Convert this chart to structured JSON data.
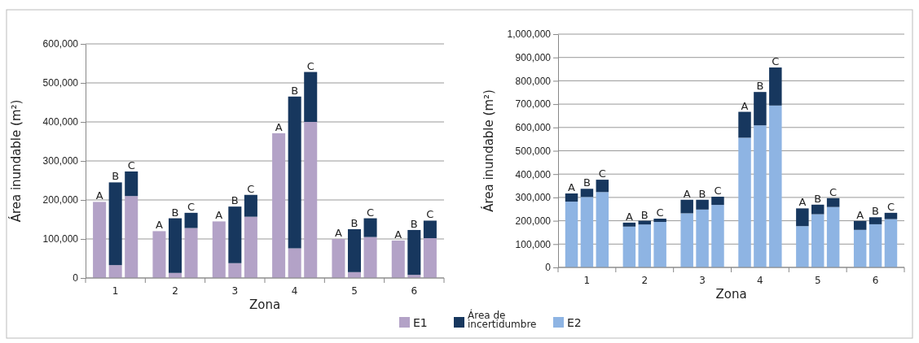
{
  "chart_data": [
    {
      "type": "bar",
      "stacked": true,
      "xlabel": "Zona",
      "ylabel": "Área inundable (m²)",
      "categories": [
        "A",
        "B",
        "C",
        "A",
        "B",
        "C",
        "A",
        "B",
        "C",
        "A",
        "B",
        "C",
        "A",
        "B",
        "C",
        "A",
        "B",
        "C"
      ],
      "annotations": [
        "1",
        "2",
        "3",
        "4",
        "5",
        "6"
      ],
      "series": [
        {
          "name": "E1",
          "color": "#b3a2c7",
          "values": [
            195000,
            33000,
            210000,
            120000,
            13000,
            128000,
            145000,
            38000,
            157000,
            371000,
            76000,
            400000,
            100000,
            15000,
            105000,
            96000,
            8000,
            102000
          ]
        },
        {
          "name": "Área de incertidumbre",
          "color": "#17375e",
          "values": [
            0,
            212000,
            63000,
            0,
            140000,
            39000,
            0,
            145000,
            56000,
            0,
            389000,
            128000,
            0,
            110000,
            48000,
            0,
            115000,
            45000
          ]
        }
      ],
      "ylim": [
        0,
        600000
      ],
      "yticks": [
        {
          "value": 0,
          "label": "0"
        },
        {
          "value": 100000,
          "label": "100,000"
        },
        {
          "value": 200000,
          "label": "200,000"
        },
        {
          "value": 300000,
          "label": "300,000"
        },
        {
          "value": 400000,
          "label": "400,000"
        },
        {
          "value": 500000,
          "label": "500,000"
        },
        {
          "value": 600000,
          "label": "600,000"
        }
      ],
      "grid": "y",
      "legend": "bottom"
    },
    {
      "type": "bar",
      "stacked": true,
      "xlabel": "Zona",
      "ylabel": "Área inundable (m²)",
      "categories": [
        "A",
        "B",
        "C",
        "A",
        "B",
        "C",
        "A",
        "B",
        "C",
        "A",
        "B",
        "C",
        "A",
        "B",
        "C",
        "A",
        "B",
        "C"
      ],
      "annotations": [
        "1",
        "2",
        "3",
        "4",
        "5",
        "6"
      ],
      "series": [
        {
          "name": "E2",
          "color": "#8eb4e3",
          "values": [
            282000,
            302000,
            323000,
            175000,
            184000,
            195000,
            232000,
            248000,
            268000,
            556000,
            609000,
            694000,
            177000,
            228000,
            259000,
            161000,
            185000,
            207000
          ]
        },
        {
          "color": "#17375e",
          "values": [
            35000,
            35000,
            53000,
            17000,
            16000,
            14000,
            58000,
            42000,
            35000,
            111000,
            143000,
            163000,
            76000,
            41000,
            38000,
            38000,
            30000,
            27000
          ]
        }
      ],
      "ylim": [
        0,
        1000000
      ],
      "yticks": [
        {
          "value": 0,
          "label": "0"
        },
        {
          "value": 100000,
          "label": "100,000"
        },
        {
          "value": 200000,
          "label": "200,000"
        },
        {
          "value": 300000,
          "label": "300,000"
        },
        {
          "value": 400000,
          "label": "400,000"
        },
        {
          "value": 500000,
          "label": "500,000"
        },
        {
          "value": 600000,
          "label": "600,000"
        },
        {
          "value": 700000,
          "label": "700,000"
        },
        {
          "value": 800000,
          "label": "800,000"
        },
        {
          "value": 900000,
          "label": "900,000"
        },
        {
          "value": 1000000,
          "label": "1,000,000"
        }
      ],
      "grid": "y",
      "legend": "bottom"
    }
  ]
}
